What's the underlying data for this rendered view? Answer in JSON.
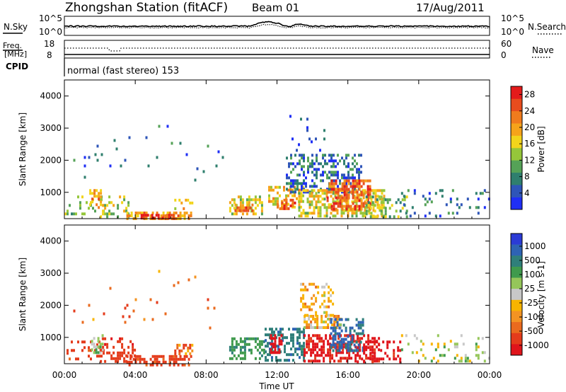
{
  "header": {
    "station": "Zhongshan Station (fitACF)",
    "beam": "Beam 01",
    "date": "17/Aug/2011"
  },
  "strip_panels": {
    "nsky_label": "N.Sky",
    "nsearch_label": "N.Search",
    "noise_left_ticks": [
      "10^5",
      "10^0"
    ],
    "noise_right_ticks": [
      "10^5",
      "10^0"
    ],
    "freq_label_line1": "Freq.",
    "freq_label_line2": "[MHz]",
    "freq_ticks": [
      "18",
      "8"
    ],
    "nave_label": "Nave",
    "nave_ticks": [
      "60",
      "0"
    ],
    "cpid_label": "CPID",
    "cpid_text": "normal (fast stereo) 153"
  },
  "axis_x": {
    "label": "Time UT",
    "ticks": [
      "00:00",
      "04:00",
      "08:00",
      "12:00",
      "16:00",
      "20:00",
      "00:00"
    ],
    "hours": [
      0,
      4,
      8,
      12,
      16,
      20,
      24
    ]
  },
  "colors": {
    "power_scale": [
      "#1f2ff5",
      "#2e55b8",
      "#2f7f6e",
      "#55a257",
      "#95c63a",
      "#f2d41b",
      "#f6a31a",
      "#f07b1d",
      "#e84c1d",
      "#e41b1b"
    ],
    "velocity_scale": [
      "#2b3bd6",
      "#2e63b4",
      "#2f7f7a",
      "#3f9a4d",
      "#95c65a",
      "#c8c8c8",
      "#f8b400",
      "#f39322",
      "#ea6a1e",
      "#e43b1b",
      "#e0141b"
    ]
  },
  "chart_data": [
    {
      "type": "heatmap",
      "title": "",
      "xlabel": "Time UT",
      "ylabel": "Slant Range [km]",
      "xlim": [
        0,
        24
      ],
      "ylim": [
        180,
        4500
      ],
      "ytick_values": [
        1000,
        2000,
        3000,
        4000
      ],
      "ytick_labels": [
        "1000",
        "2000",
        "3000",
        "4000"
      ],
      "colorbar": {
        "label": "Power [dB]",
        "range": [
          0,
          30
        ],
        "tick_values": [
          4,
          8,
          12,
          16,
          20,
          24,
          28
        ],
        "tick_labels": [
          "4",
          "8",
          "12",
          "16",
          "20",
          "24",
          "28"
        ]
      },
      "patches": [
        {
          "t0": 0.0,
          "t1": 2.2,
          "r0": 300,
          "r1": 900,
          "power": 12,
          "density": 0.25
        },
        {
          "t0": 1.4,
          "t1": 2.0,
          "r0": 500,
          "r1": 1100,
          "power": 20,
          "density": 0.45
        },
        {
          "t0": 2.0,
          "t1": 3.6,
          "r0": 250,
          "r1": 900,
          "power": 14,
          "density": 0.35
        },
        {
          "t0": 3.5,
          "t1": 7.2,
          "r0": 200,
          "r1": 400,
          "power": 20,
          "density": 0.55
        },
        {
          "t0": 4.3,
          "t1": 6.2,
          "r0": 200,
          "r1": 330,
          "power": 27,
          "density": 0.6
        },
        {
          "t0": 6.2,
          "t1": 7.2,
          "r0": 450,
          "r1": 800,
          "power": 18,
          "density": 0.45
        },
        {
          "t0": 9.3,
          "t1": 11.2,
          "r0": 300,
          "r1": 900,
          "power": 16,
          "density": 0.5
        },
        {
          "t0": 9.6,
          "t1": 10.6,
          "r0": 420,
          "r1": 650,
          "power": 24,
          "density": 0.55
        },
        {
          "t0": 11.5,
          "t1": 13.5,
          "r0": 500,
          "r1": 1200,
          "power": 18,
          "density": 0.45
        },
        {
          "t0": 12.0,
          "t1": 13.0,
          "r0": 500,
          "r1": 800,
          "power": 25,
          "density": 0.5
        },
        {
          "t0": 12.5,
          "t1": 16.8,
          "r0": 1000,
          "r1": 2200,
          "power": 6,
          "density": 0.4
        },
        {
          "t0": 12.7,
          "t1": 14.8,
          "r0": 2300,
          "r1": 3500,
          "power": 4,
          "density": 0.08
        },
        {
          "t0": 13.2,
          "t1": 18.0,
          "r0": 300,
          "r1": 1100,
          "power": 16,
          "density": 0.55
        },
        {
          "t0": 14.8,
          "t1": 17.2,
          "r0": 500,
          "r1": 1400,
          "power": 24,
          "density": 0.6
        },
        {
          "t0": 17.0,
          "t1": 19.3,
          "r0": 200,
          "r1": 900,
          "power": 12,
          "density": 0.3
        },
        {
          "t0": 19.0,
          "t1": 24.0,
          "r0": 300,
          "r1": 1100,
          "power": 6,
          "density": 0.12
        },
        {
          "t0": 0.5,
          "t1": 9.0,
          "r0": 1200,
          "r1": 3100,
          "power": 5,
          "density": 0.015
        }
      ]
    },
    {
      "type": "heatmap",
      "title": "",
      "xlabel": "Time UT",
      "ylabel": "Slant Range [km]",
      "xlim": [
        0,
        24
      ],
      "ylim": [
        180,
        4500
      ],
      "ytick_values": [
        1000,
        2000,
        3000,
        4000
      ],
      "ytick_labels": [
        "1000",
        "2000",
        "3000",
        "4000"
      ],
      "colorbar": {
        "label": "Velocity [m s-1]",
        "tick_labels": [
          "1000",
          "500",
          "100",
          "25",
          "-25",
          "-100",
          "-500",
          "-1000"
        ]
      },
      "patches": [
        {
          "t0": 0.0,
          "t1": 2.2,
          "r0": 300,
          "r1": 900,
          "velocity": -150,
          "density": 0.25
        },
        {
          "t0": 1.5,
          "t1": 2.2,
          "r0": 500,
          "r1": 1100,
          "velocity": 80,
          "density": 0.4
        },
        {
          "t0": 2.0,
          "t1": 4.0,
          "r0": 250,
          "r1": 1000,
          "velocity": -200,
          "density": 0.35
        },
        {
          "t0": 3.5,
          "t1": 7.2,
          "r0": 180,
          "r1": 450,
          "velocity": -150,
          "density": 0.6
        },
        {
          "t0": 6.2,
          "t1": 7.2,
          "r0": 450,
          "r1": 800,
          "velocity": -60,
          "density": 0.4
        },
        {
          "t0": 9.3,
          "t1": 11.3,
          "r0": 300,
          "r1": 1000,
          "velocity": 200,
          "density": 0.5
        },
        {
          "t0": 11.3,
          "t1": 13.5,
          "r0": 300,
          "r1": 1300,
          "velocity": 400,
          "density": 0.45
        },
        {
          "t0": 11.6,
          "t1": 12.2,
          "r0": 500,
          "r1": 1100,
          "velocity": -700,
          "density": 0.35
        },
        {
          "t0": 13.5,
          "t1": 15.6,
          "r0": 1300,
          "r1": 1700,
          "velocity": 0,
          "density": 0.65
        },
        {
          "t0": 13.3,
          "t1": 15.2,
          "r0": 1700,
          "r1": 2700,
          "velocity": 0,
          "density": 0.3
        },
        {
          "t0": 13.5,
          "t1": 17.8,
          "r0": 300,
          "r1": 1100,
          "velocity": -300,
          "density": 0.55
        },
        {
          "t0": 15.0,
          "t1": 16.8,
          "r0": 600,
          "r1": 1600,
          "velocity": 600,
          "density": 0.5
        },
        {
          "t0": 16.5,
          "t1": 19.0,
          "r0": 200,
          "r1": 900,
          "velocity": -400,
          "density": 0.35
        },
        {
          "t0": 19.0,
          "t1": 24.0,
          "r0": 300,
          "r1": 1100,
          "velocity": 60,
          "density": 0.12
        },
        {
          "t0": 0.5,
          "t1": 9.0,
          "r0": 1200,
          "r1": 3100,
          "velocity": -80,
          "density": 0.015
        }
      ]
    }
  ]
}
